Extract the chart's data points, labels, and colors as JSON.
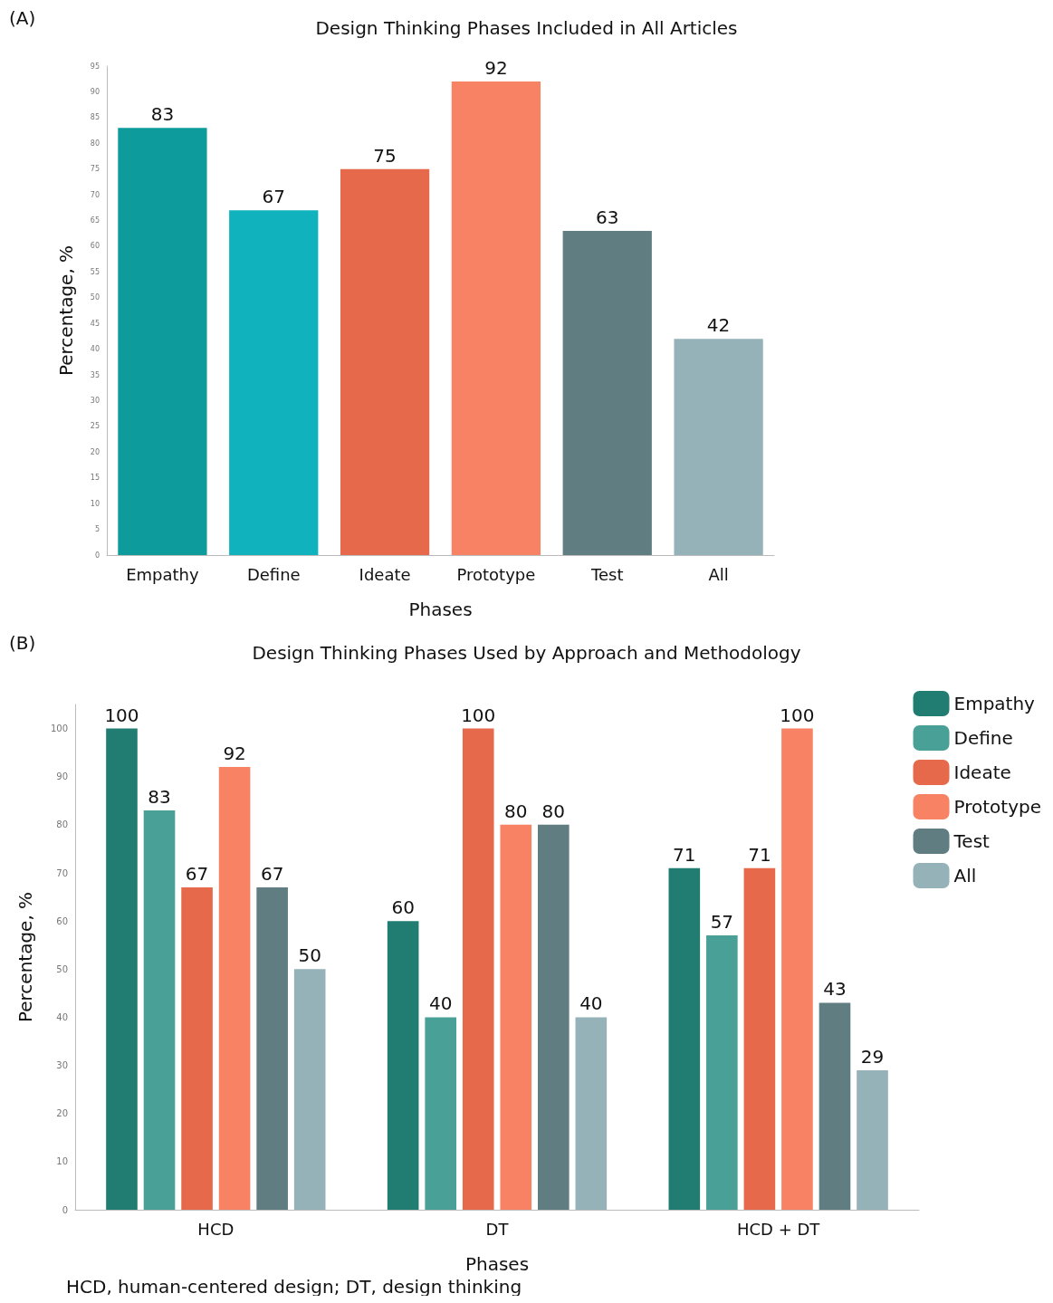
{
  "chart_data": [
    {
      "type": "bar",
      "title": "Design Thinking Phases Included in All Articles",
      "xlabel": "Phases",
      "ylabel": "Percentage, %",
      "categories": [
        "Empathy",
        "Define",
        "Ideate",
        "Prototype",
        "Test",
        "All"
      ],
      "values": [
        83,
        67,
        75,
        92,
        63,
        42
      ],
      "colors": [
        "#0e9b9b",
        "#10b3bd",
        "#e5694a",
        "#f88264",
        "#607d82",
        "#94b2b8"
      ],
      "ylim": [
        0,
        95
      ],
      "yticks": [
        0,
        5,
        10,
        15,
        20,
        25,
        30,
        35,
        40,
        45,
        50,
        55,
        60,
        65,
        70,
        75,
        80,
        85,
        90,
        95
      ],
      "grid": false,
      "legend": false,
      "data_labels": true,
      "annotations": [
        "(A)"
      ]
    },
    {
      "type": "bar",
      "title": "Design Thinking Phases Used by Approach and Methodology",
      "xlabel": "Phases",
      "ylabel": "Percentage, %",
      "categories": [
        "HCD",
        "DT",
        "HCD + DT"
      ],
      "series": [
        {
          "name": "Empathy",
          "color": "#217d72",
          "values": [
            100,
            60,
            71
          ]
        },
        {
          "name": "Define",
          "color": "#48a097",
          "values": [
            83,
            40,
            57
          ]
        },
        {
          "name": "Ideate",
          "color": "#e5694a",
          "values": [
            67,
            100,
            71
          ]
        },
        {
          "name": "Prototype",
          "color": "#f88264",
          "values": [
            92,
            80,
            100
          ]
        },
        {
          "name": "Test",
          "color": "#607d82",
          "values": [
            67,
            80,
            43
          ]
        },
        {
          "name": "All",
          "color": "#94b2b8",
          "values": [
            50,
            40,
            29
          ]
        }
      ],
      "ylim": [
        0,
        105
      ],
      "yticks": [
        0,
        10,
        20,
        30,
        40,
        50,
        60,
        70,
        80,
        90,
        100
      ],
      "grid": false,
      "legend": "right",
      "data_labels": true,
      "annotations": [
        "(B)",
        "HCD, human-centered design; DT, design thinking"
      ]
    }
  ]
}
